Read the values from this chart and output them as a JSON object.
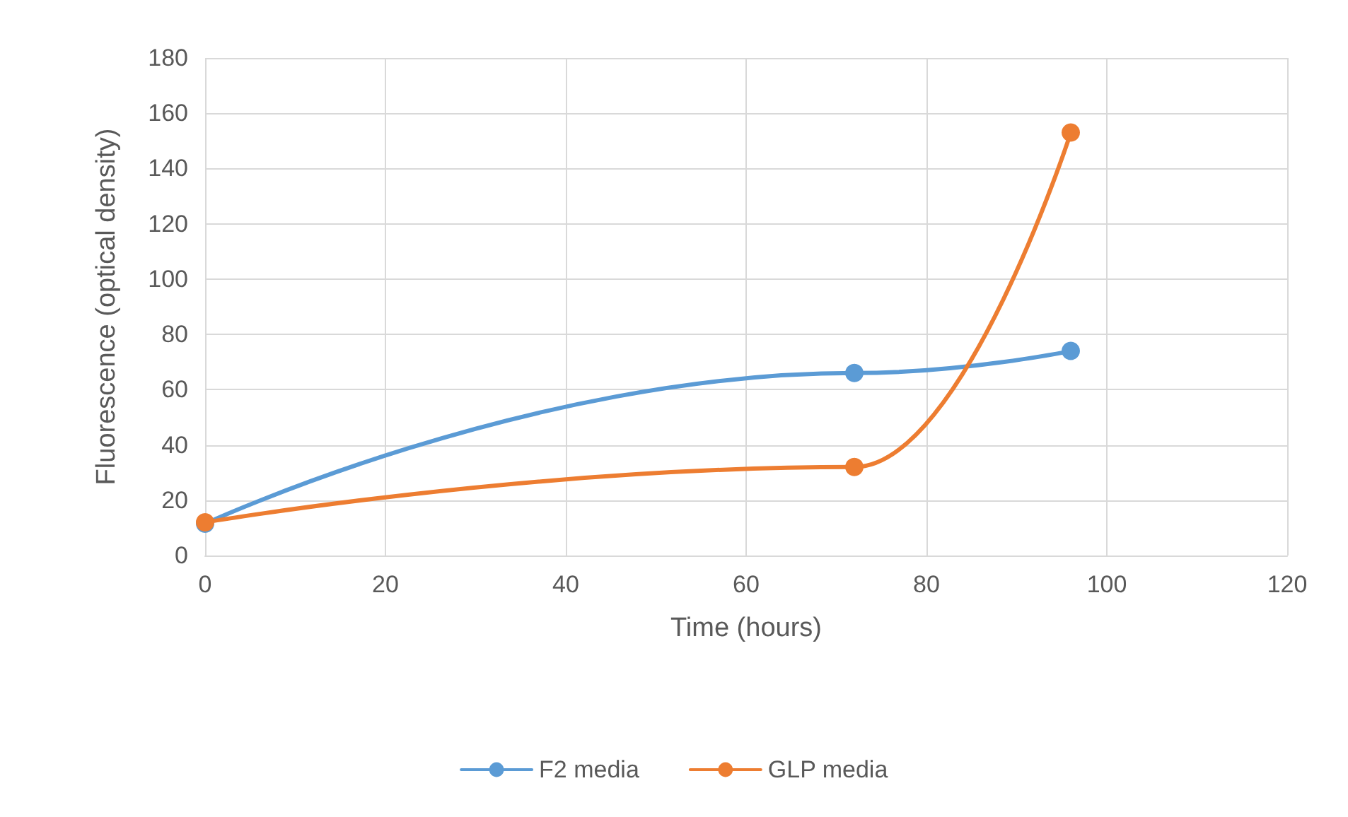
{
  "chart_data": {
    "type": "line",
    "xlabel": "Time (hours)",
    "ylabel": "Fluorescence (optical density)",
    "xlim": [
      0,
      120
    ],
    "xticks": [
      0,
      20,
      40,
      60,
      80,
      100,
      120
    ],
    "ylim": [
      0,
      180
    ],
    "yticks": [
      0,
      20,
      40,
      60,
      80,
      100,
      120,
      140,
      160,
      180
    ],
    "series": [
      {
        "name": "F2 media",
        "color": "#5b9bd5",
        "x": [
          0,
          72,
          96
        ],
        "values": [
          11.5,
          66,
          74
        ]
      },
      {
        "name": "GLP media",
        "color": "#ed7d31",
        "x": [
          0,
          72,
          96
        ],
        "values": [
          12,
          32,
          153
        ]
      }
    ],
    "grid": true,
    "legend": "bottom",
    "marker": "circle",
    "line_style": "solid"
  }
}
